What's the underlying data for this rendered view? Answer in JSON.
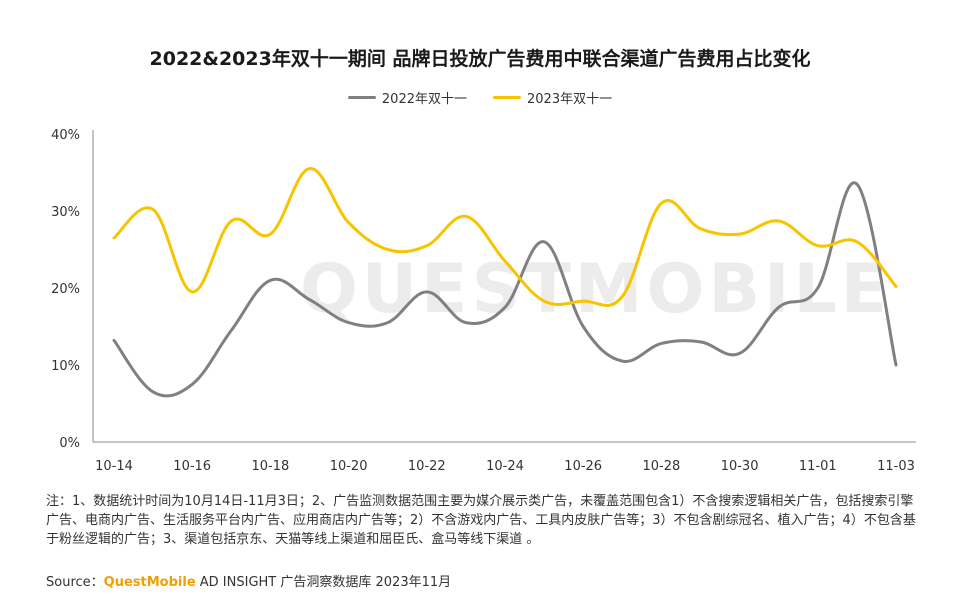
{
  "title": "2022&2023年双十一期间 品牌日投放广告费用中联合渠道广告费用占比变化",
  "watermark": "QUESTMOBILE",
  "colors": {
    "series_2022": "#808080",
    "series_2023": "#f8c400",
    "axis": "#555555",
    "brand": "#f0a000"
  },
  "note": "注：1、数据统计时间为10月14日-11月3日；2、广告监测数据范围主要为媒介展示类广告，未覆盖范围包含1）不含搜索逻辑相关广告，包括搜索引擎广告、电商内广告、生活服务平台内广告、应用商店内广告等；2）不含游戏内广告、工具内皮肤广告等；3）不包含剧综冠名、植入广告；4）不包含基于粉丝逻辑的广告；3、渠道包括京东、天猫等线上渠道和屈臣氏、盒马等线下渠道 。",
  "source": {
    "prefix": "Source：",
    "brand": "QuestMobile",
    "suffix": " AD INSIGHT 广告洞察数据库 2023年11月"
  },
  "chart_data": {
    "type": "line",
    "title": "2022&2023年双十一期间 品牌日投放广告费用中联合渠道广告费用占比变化",
    "xlabel": "",
    "ylabel": "",
    "ylim": [
      0,
      40
    ],
    "yticks": [
      "0%",
      "10%",
      "20%",
      "30%",
      "40%"
    ],
    "grid": false,
    "legend": "top-center",
    "categories": [
      "10-14",
      "10-15",
      "10-16",
      "10-17",
      "10-18",
      "10-19",
      "10-20",
      "10-21",
      "10-22",
      "10-23",
      "10-24",
      "10-25",
      "10-26",
      "10-27",
      "10-28",
      "10-29",
      "10-30",
      "10-31",
      "11-01",
      "11-02",
      "11-03"
    ],
    "xtick_labels": [
      "10-14",
      "10-16",
      "10-18",
      "10-20",
      "10-22",
      "10-24",
      "10-26",
      "10-28",
      "10-30",
      "11-01",
      "11-03"
    ],
    "series": [
      {
        "name": "2022年双十一",
        "values": [
          13.2,
          6.5,
          7.5,
          14.5,
          21.0,
          18.5,
          15.5,
          15.5,
          19.5,
          15.5,
          17.5,
          26.0,
          15.0,
          10.5,
          12.8,
          13.0,
          11.5,
          17.5,
          20.0,
          33.5,
          10.0
        ]
      },
      {
        "name": "2023年双十一",
        "values": [
          26.5,
          30.2,
          19.5,
          28.7,
          27.0,
          35.5,
          28.5,
          25.0,
          25.5,
          29.3,
          23.5,
          18.3,
          18.3,
          18.9,
          31.0,
          27.7,
          27.0,
          28.7,
          25.5,
          26.0,
          20.2
        ]
      }
    ]
  }
}
